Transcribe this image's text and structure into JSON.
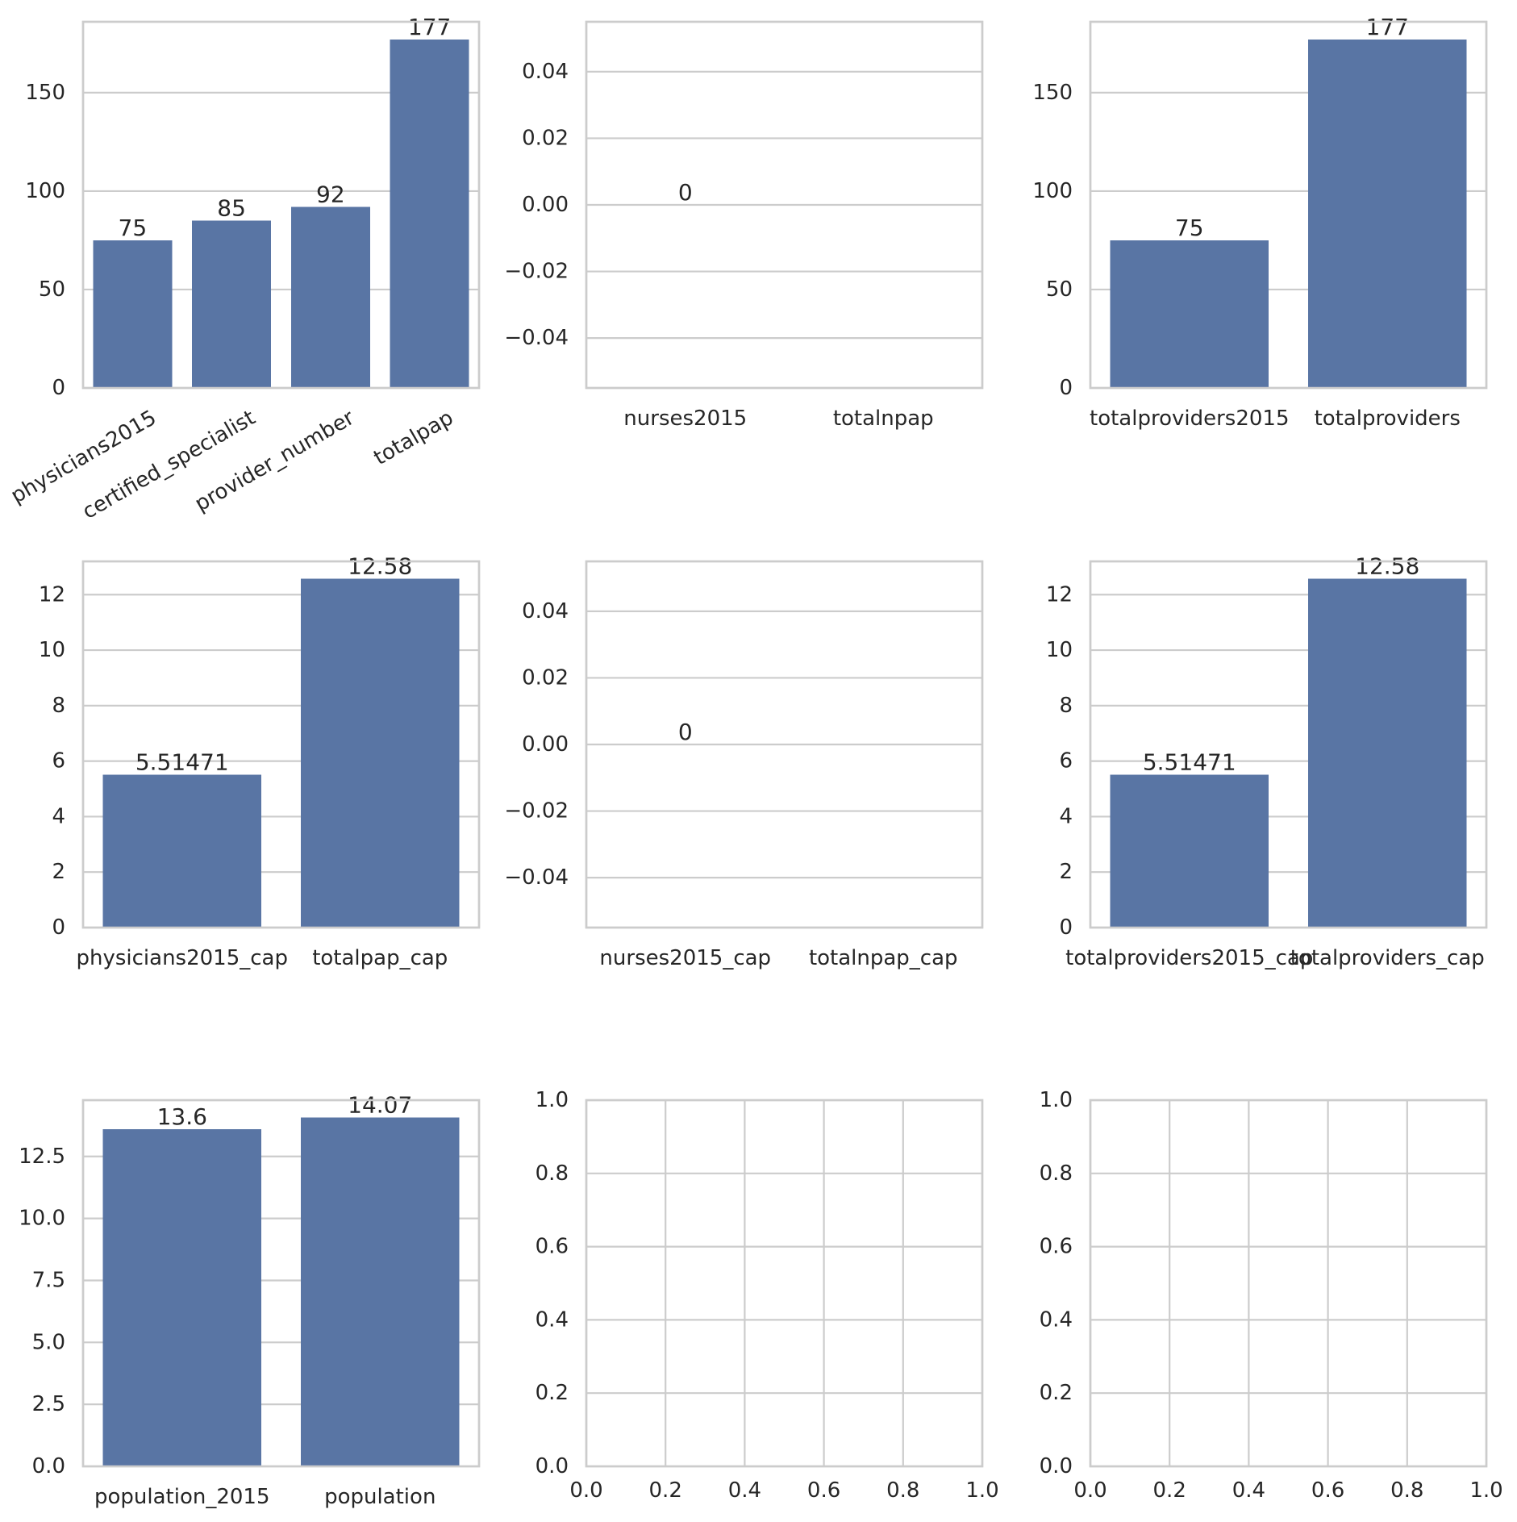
{
  "chart_data": [
    {
      "type": "bar",
      "categories": [
        "physicians2015",
        "certified_specialist",
        "provider_number",
        "totalpap"
      ],
      "values": [
        75,
        85,
        92,
        177
      ],
      "value_labels": [
        "75",
        "85",
        "92",
        "177"
      ],
      "ylim": [
        0,
        186
      ],
      "yticks": [
        0,
        50,
        100,
        150
      ],
      "ytick_labels": [
        "0",
        "50",
        "100",
        "150"
      ],
      "xtick_rotation": 30,
      "grid": "y",
      "color": "#5975a4"
    },
    {
      "type": "bar",
      "categories": [
        "nurses2015",
        "totalnpap"
      ],
      "values": [
        0,
        null
      ],
      "value_labels": [
        "0",
        null
      ],
      "ylim": [
        -0.055,
        0.055
      ],
      "yticks": [
        -0.04,
        -0.02,
        0.0,
        0.02,
        0.04
      ],
      "ytick_labels": [
        "−0.04",
        "−0.02",
        "0.00",
        "0.02",
        "0.04"
      ],
      "grid": "y",
      "color": "#5975a4"
    },
    {
      "type": "bar",
      "categories": [
        "totalproviders2015",
        "totalproviders"
      ],
      "values": [
        75,
        177
      ],
      "value_labels": [
        "75",
        "177"
      ],
      "ylim": [
        0,
        186
      ],
      "yticks": [
        0,
        50,
        100,
        150
      ],
      "ytick_labels": [
        "0",
        "50",
        "100",
        "150"
      ],
      "grid": "y",
      "color": "#5975a4"
    },
    {
      "type": "bar",
      "categories": [
        "physicians2015_cap",
        "totalpap_cap"
      ],
      "values": [
        5.51471,
        12.58
      ],
      "value_labels": [
        "5.51471",
        "12.58"
      ],
      "ylim": [
        0,
        13.2
      ],
      "yticks": [
        0,
        2,
        4,
        6,
        8,
        10,
        12
      ],
      "ytick_labels": [
        "0",
        "2",
        "4",
        "6",
        "8",
        "10",
        "12"
      ],
      "grid": "y",
      "color": "#5975a4"
    },
    {
      "type": "bar",
      "categories": [
        "nurses2015_cap",
        "totalnpap_cap"
      ],
      "values": [
        0,
        null
      ],
      "value_labels": [
        "0",
        null
      ],
      "ylim": [
        -0.055,
        0.055
      ],
      "yticks": [
        -0.04,
        -0.02,
        0.0,
        0.02,
        0.04
      ],
      "ytick_labels": [
        "−0.04",
        "−0.02",
        "0.00",
        "0.02",
        "0.04"
      ],
      "grid": "y",
      "color": "#5975a4"
    },
    {
      "type": "bar",
      "categories": [
        "totalproviders2015_cap",
        "totalproviders_cap"
      ],
      "values": [
        5.51471,
        12.58
      ],
      "value_labels": [
        "5.51471",
        "12.58"
      ],
      "ylim": [
        0,
        13.2
      ],
      "yticks": [
        0,
        2,
        4,
        6,
        8,
        10,
        12
      ],
      "ytick_labels": [
        "0",
        "2",
        "4",
        "6",
        "8",
        "10",
        "12"
      ],
      "grid": "y",
      "color": "#5975a4"
    },
    {
      "type": "bar",
      "categories": [
        "population_2015",
        "population"
      ],
      "values": [
        13.6,
        14.07
      ],
      "value_labels": [
        "13.6",
        "14.07"
      ],
      "ylim": [
        0,
        14.77
      ],
      "yticks": [
        0,
        2.5,
        5,
        7.5,
        10,
        12.5
      ],
      "ytick_labels": [
        "0.0",
        "2.5",
        "5.0",
        "7.5",
        "10.0",
        "12.5"
      ],
      "grid": "y",
      "color": "#5975a4"
    },
    {
      "type": "empty",
      "xlim": [
        0,
        1
      ],
      "ylim": [
        0,
        1
      ],
      "xticks": [
        0,
        0.2,
        0.4,
        0.6,
        0.8,
        1.0
      ],
      "xtick_labels": [
        "0.0",
        "0.2",
        "0.4",
        "0.6",
        "0.8",
        "1.0"
      ],
      "yticks": [
        0,
        0.2,
        0.4,
        0.6,
        0.8,
        1.0
      ],
      "ytick_labels": [
        "0.0",
        "0.2",
        "0.4",
        "0.6",
        "0.8",
        "1.0"
      ],
      "grid": "both"
    },
    {
      "type": "empty",
      "xlim": [
        0,
        1
      ],
      "ylim": [
        0,
        1
      ],
      "xticks": [
        0,
        0.2,
        0.4,
        0.6,
        0.8,
        1.0
      ],
      "xtick_labels": [
        "0.0",
        "0.2",
        "0.4",
        "0.6",
        "0.8",
        "1.0"
      ],
      "yticks": [
        0,
        0.2,
        0.4,
        0.6,
        0.8,
        1.0
      ],
      "ytick_labels": [
        "0.0",
        "0.2",
        "0.4",
        "0.6",
        "0.8",
        "1.0"
      ],
      "grid": "both"
    }
  ]
}
